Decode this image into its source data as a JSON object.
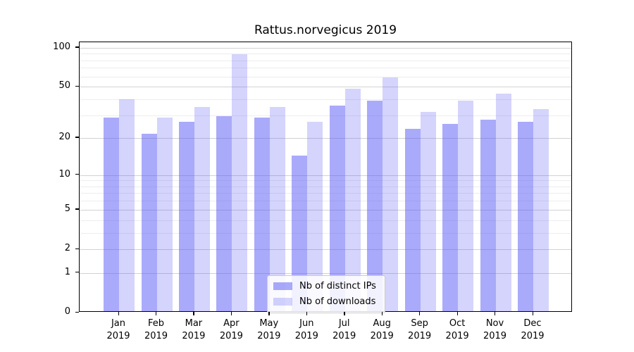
{
  "chart_data": {
    "type": "bar",
    "title": "Rattus.norvegicus 2019",
    "categories": [
      {
        "month": "Jan",
        "year": "2019"
      },
      {
        "month": "Feb",
        "year": "2019"
      },
      {
        "month": "Mar",
        "year": "2019"
      },
      {
        "month": "Apr",
        "year": "2019"
      },
      {
        "month": "May",
        "year": "2019"
      },
      {
        "month": "Jun",
        "year": "2019"
      },
      {
        "month": "Jul",
        "year": "2019"
      },
      {
        "month": "Aug",
        "year": "2019"
      },
      {
        "month": "Sep",
        "year": "2019"
      },
      {
        "month": "Oct",
        "year": "2019"
      },
      {
        "month": "Nov",
        "year": "2019"
      },
      {
        "month": "Dec",
        "year": "2019"
      }
    ],
    "series": [
      {
        "name": "Nb of distinct IPs",
        "color": "rgba(85,85,245,0.5)",
        "values": [
          28,
          21,
          26,
          29,
          28,
          14,
          35,
          38,
          23,
          25,
          27,
          26
        ]
      },
      {
        "name": "Nb of downloads",
        "color": "rgba(85,85,245,0.25)",
        "values": [
          39,
          28,
          34,
          87,
          34,
          26,
          47,
          58,
          31,
          38,
          43,
          33
        ]
      }
    ],
    "y_axis": {
      "scale": "log1p",
      "ticks": [
        0,
        1,
        2,
        5,
        10,
        20,
        50,
        100
      ],
      "minor_ticks": [
        3,
        4,
        6,
        7,
        8,
        9,
        30,
        40,
        60,
        70,
        80,
        90
      ],
      "max": 110
    },
    "legend": {
      "position": "lower center",
      "entries": [
        "Nb of distinct IPs",
        "Nb of downloads"
      ]
    },
    "grid": true,
    "xlabel": "",
    "ylabel": ""
  },
  "colors": {
    "bar_dark": "rgba(85,85,245,0.5)",
    "bar_light": "rgba(85,85,245,0.25)",
    "major_grid": "#d2d2d2",
    "minor_grid": "#ededed",
    "spine": "#000000",
    "text": "#000000",
    "legend_border": "#cccccc"
  }
}
